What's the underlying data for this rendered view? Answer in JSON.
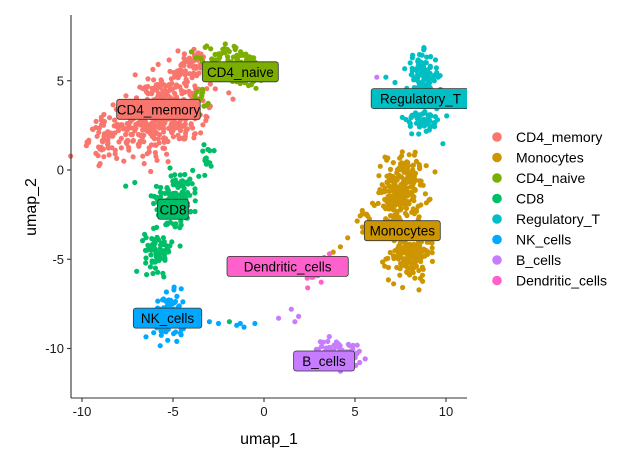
{
  "chart_data": {
    "type": "scatter",
    "title": "",
    "xlabel": "umap_1",
    "ylabel": "umap_2",
    "xlim": [
      -10.6,
      11.2
    ],
    "ylim": [
      -12.6,
      8.8
    ],
    "xticks": [
      -10,
      -5,
      0,
      5,
      10
    ],
    "yticks": [
      -10,
      -5,
      0,
      5
    ],
    "xtick_labels": [
      "-10",
      "-5",
      "0",
      "5",
      "10"
    ],
    "ytick_labels": [
      "-10",
      "-5",
      "0",
      "5"
    ],
    "grid": false,
    "legend_position": "right",
    "point_note": "Points approximated per cluster by center, spread and count (individual cells not transcribed).",
    "series": [
      {
        "name": "CD4_memory",
        "color": "#F8766D",
        "label": "CD4_memory",
        "label_pos": [
          -5.8,
          3.4
        ],
        "blobs": [
          {
            "center": [
              -5.6,
              3.1
            ],
            "spread": [
              2.2,
              1.7
            ],
            "rotation": 30,
            "count": 420
          },
          {
            "center": [
              -8.6,
              1.8
            ],
            "spread": [
              0.8,
              1.0
            ],
            "rotation": 0,
            "count": 60
          },
          {
            "center": [
              -3.8,
              5.9
            ],
            "spread": [
              0.9,
              0.7
            ],
            "rotation": 0,
            "count": 50
          }
        ]
      },
      {
        "name": "Monocytes",
        "color": "#CD9600",
        "label": "Monocytes",
        "label_pos": [
          7.6,
          -3.4
        ],
        "blobs": [
          {
            "center": [
              7.5,
              -1.2
            ],
            "spread": [
              0.9,
              1.7
            ],
            "rotation": -10,
            "count": 220
          },
          {
            "center": [
              8.0,
              -4.6
            ],
            "spread": [
              0.9,
              1.3
            ],
            "rotation": 0,
            "count": 160
          },
          {
            "center": [
              5.6,
              -2.8
            ],
            "spread": [
              0.4,
              0.5
            ],
            "rotation": 0,
            "count": 12
          }
        ],
        "extra_points": [
          [
            4.6,
            -3.8
          ],
          [
            4.2,
            -4.3
          ],
          [
            3.8,
            -4.6
          ]
        ]
      },
      {
        "name": "CD4_naive",
        "color": "#7CAE00",
        "label": "CD4_naive",
        "label_pos": [
          -1.3,
          5.5
        ],
        "blobs": [
          {
            "center": [
              -1.4,
              5.8
            ],
            "spread": [
              1.4,
              0.8
            ],
            "rotation": -15,
            "count": 170
          },
          {
            "center": [
              -3.4,
              3.9
            ],
            "spread": [
              0.4,
              0.6
            ],
            "rotation": 0,
            "count": 15
          }
        ]
      },
      {
        "name": "CD8",
        "color": "#00BE67",
        "label": "CD8",
        "label_pos": [
          -5.0,
          -2.2
        ],
        "blobs": [
          {
            "center": [
              -4.8,
              -1.5
            ],
            "spread": [
              1.0,
              1.2
            ],
            "rotation": 0,
            "count": 130
          },
          {
            "center": [
              -5.8,
              -4.5
            ],
            "spread": [
              0.6,
              0.9
            ],
            "rotation": 0,
            "count": 70
          },
          {
            "center": [
              -3.1,
              0.5
            ],
            "spread": [
              0.3,
              0.7
            ],
            "rotation": 0,
            "count": 15
          }
        ],
        "extra_points": [
          [
            -7.6,
            -0.9
          ],
          [
            -7.1,
            -0.7
          ],
          [
            -1.9,
            -8.5
          ]
        ]
      },
      {
        "name": "Regulatory_T",
        "color": "#00BFC4",
        "label": "Regulatory_T",
        "label_pos": [
          8.6,
          4.0
        ],
        "blobs": [
          {
            "center": [
              8.7,
              5.3
            ],
            "spread": [
              0.7,
              1.0
            ],
            "rotation": 0,
            "count": 100
          },
          {
            "center": [
              8.8,
              2.9
            ],
            "spread": [
              0.8,
              0.8
            ],
            "rotation": 0,
            "count": 60
          }
        ],
        "extra_points": [
          [
            7.2,
            4.9
          ],
          [
            6.7,
            5.2
          ]
        ]
      },
      {
        "name": "NK_cells",
        "color": "#00A9FF",
        "label": "NK_cells",
        "label_pos": [
          -5.3,
          -8.3
        ],
        "blobs": [
          {
            "center": [
              -5.2,
              -8.2
            ],
            "spread": [
              0.7,
              1.0
            ],
            "rotation": 0,
            "count": 120
          }
        ],
        "extra_points": [
          [
            -3.0,
            -8.5
          ],
          [
            -2.5,
            -8.6
          ],
          [
            -1.5,
            -8.7
          ],
          [
            -1.3,
            -8.6
          ],
          [
            -1.1,
            -8.8
          ],
          [
            -0.5,
            -8.6
          ]
        ]
      },
      {
        "name": "B_cells",
        "color": "#C77CFF",
        "label": "B_cells",
        "label_pos": [
          3.3,
          -10.7
        ],
        "blobs": [
          {
            "center": [
              4.0,
              -10.3
            ],
            "spread": [
              1.0,
              0.6
            ],
            "rotation": -10,
            "count": 90
          }
        ],
        "extra_points": [
          [
            1.5,
            -7.8
          ],
          [
            1.7,
            -8.5
          ],
          [
            1.9,
            -8.2
          ],
          [
            0.8,
            -8.3
          ],
          [
            6.2,
            5.2
          ]
        ]
      },
      {
        "name": "Dendritic_cells",
        "color": "#FF61CC",
        "label": "Dendritic_cells",
        "label_pos": [
          1.3,
          -5.4
        ],
        "blobs": [
          {
            "center": [
              2.8,
              -5.7
            ],
            "spread": [
              0.6,
              0.4
            ],
            "rotation": -30,
            "count": 20
          }
        ],
        "extra_points": [
          [
            3.6,
            -4.7
          ],
          [
            3.3,
            -4.9
          ],
          [
            2.7,
            -6.0
          ],
          [
            2.4,
            -6.6
          ]
        ]
      }
    ]
  }
}
